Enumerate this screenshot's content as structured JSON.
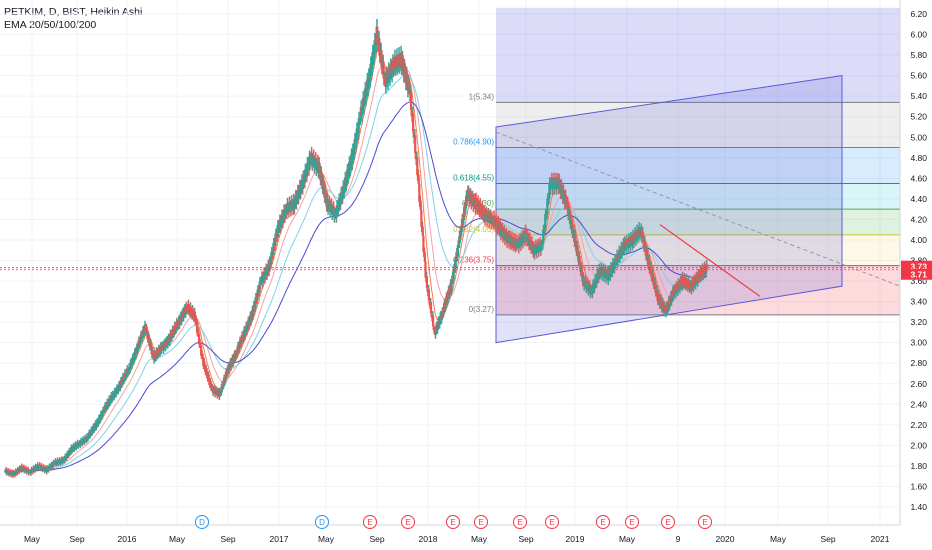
{
  "legend": {
    "title": "PETKIM, D, BIST, Heikin Ashi",
    "indicator": "EMA 20/50/100/200"
  },
  "chart_data": {
    "type": "candlestick",
    "symbol": "PETKIM",
    "interval": "D",
    "exchange": "BIST",
    "style": "Heikin Ashi",
    "y_axis_ticks": [
      1.4,
      1.6,
      1.8,
      2.0,
      2.2,
      2.4,
      2.6,
      2.8,
      3.0,
      3.2,
      3.4,
      3.6,
      3.8,
      4.0,
      4.2,
      4.4,
      4.6,
      4.8,
      5.0,
      5.2,
      5.4,
      5.6,
      5.8,
      6.0,
      6.2
    ],
    "ylim": [
      1.36,
      6.26
    ],
    "x_axis_ticks": [
      "May",
      "Sep",
      "2016",
      "May",
      "Sep",
      "2017",
      "May",
      "Sep",
      "2018",
      "May",
      "Sep",
      "2019",
      "May",
      "9",
      "2020",
      "May",
      "Sep",
      "2021"
    ],
    "price_labels": [
      {
        "value": "3.73",
        "color": "#f23645"
      },
      {
        "value": "3.71",
        "color": "#f23645"
      }
    ],
    "price_path": [
      [
        0,
        1.75
      ],
      [
        0.3,
        1.72
      ],
      [
        0.6,
        1.78
      ],
      [
        0.9,
        1.74
      ],
      [
        1.2,
        1.8
      ],
      [
        1.5,
        1.76
      ],
      [
        1.8,
        1.83
      ],
      [
        2.1,
        1.85
      ],
      [
        2.4,
        1.96
      ],
      [
        2.7,
        2.02
      ],
      [
        3.0,
        2.08
      ],
      [
        3.3,
        2.2
      ],
      [
        3.6,
        2.35
      ],
      [
        3.9,
        2.48
      ],
      [
        4.2,
        2.6
      ],
      [
        4.5,
        2.75
      ],
      [
        4.8,
        2.95
      ],
      [
        5.1,
        3.15
      ],
      [
        5.4,
        2.85
      ],
      [
        5.7,
        2.95
      ],
      [
        6.0,
        3.05
      ],
      [
        6.3,
        3.2
      ],
      [
        6.6,
        3.35
      ],
      [
        6.9,
        3.25
      ],
      [
        7.2,
        2.8
      ],
      [
        7.5,
        2.55
      ],
      [
        7.8,
        2.5
      ],
      [
        8.1,
        2.75
      ],
      [
        8.4,
        2.9
      ],
      [
        8.7,
        3.1
      ],
      [
        9.0,
        3.3
      ],
      [
        9.3,
        3.6
      ],
      [
        9.6,
        3.75
      ],
      [
        9.9,
        4.1
      ],
      [
        10.2,
        4.3
      ],
      [
        10.5,
        4.35
      ],
      [
        10.8,
        4.55
      ],
      [
        11.1,
        4.8
      ],
      [
        11.4,
        4.7
      ],
      [
        11.7,
        4.35
      ],
      [
        12.0,
        4.25
      ],
      [
        12.3,
        4.5
      ],
      [
        12.6,
        4.8
      ],
      [
        12.9,
        5.2
      ],
      [
        13.2,
        5.55
      ],
      [
        13.5,
        6.0
      ],
      [
        13.8,
        5.55
      ],
      [
        14.1,
        5.7
      ],
      [
        14.4,
        5.75
      ],
      [
        14.7,
        5.45
      ],
      [
        15.0,
        4.6
      ],
      [
        15.3,
        3.6
      ],
      [
        15.6,
        3.1
      ],
      [
        15.9,
        3.3
      ],
      [
        16.2,
        3.55
      ],
      [
        16.5,
        4.0
      ],
      [
        16.8,
        4.45
      ],
      [
        17.1,
        4.35
      ],
      [
        17.4,
        4.25
      ],
      [
        17.7,
        4.2
      ],
      [
        18.0,
        4.1
      ],
      [
        18.3,
        4.0
      ],
      [
        18.6,
        3.95
      ],
      [
        18.9,
        4.05
      ],
      [
        19.2,
        3.9
      ],
      [
        19.5,
        3.95
      ],
      [
        19.8,
        4.55
      ],
      [
        20.1,
        4.55
      ],
      [
        20.4,
        4.35
      ],
      [
        20.7,
        4.0
      ],
      [
        21.0,
        3.6
      ],
      [
        21.3,
        3.5
      ],
      [
        21.6,
        3.7
      ],
      [
        21.9,
        3.65
      ],
      [
        22.2,
        3.8
      ],
      [
        22.5,
        3.95
      ],
      [
        22.8,
        4.0
      ],
      [
        23.1,
        4.1
      ],
      [
        23.4,
        3.75
      ],
      [
        23.7,
        3.45
      ],
      [
        24.0,
        3.3
      ],
      [
        24.3,
        3.5
      ],
      [
        24.6,
        3.6
      ],
      [
        24.9,
        3.55
      ],
      [
        25.2,
        3.65
      ],
      [
        25.5,
        3.72
      ]
    ],
    "ema_series": [
      {
        "period": 20,
        "color": "#f57c4d"
      },
      {
        "period": 50,
        "color": "#f4a3a3"
      },
      {
        "period": 100,
        "color": "#7fd3e6"
      },
      {
        "period": 200,
        "color": "#4b4acf"
      }
    ],
    "fibonacci_levels": [
      {
        "label": "0(3.27)",
        "value": 3.27,
        "text_color": "#787b86",
        "fill": "#f23645"
      },
      {
        "label": "0.236(3.75)",
        "value": 3.75,
        "text_color": "#f23645",
        "fill": "#f7d774"
      },
      {
        "label": "0.382(4.05)",
        "value": 4.05,
        "text_color": "#c3c332",
        "fill": "#4caf50"
      },
      {
        "label": "0.5(4.30)",
        "value": 4.3,
        "text_color": "#4caf50",
        "fill": "#26c6da"
      },
      {
        "label": "0.618(4.55)",
        "value": 4.55,
        "text_color": "#089981",
        "fill": "#2196f3"
      },
      {
        "label": "0.786(4.90)",
        "value": 4.9,
        "text_color": "#2196f3",
        "fill": "#9e9e9e"
      },
      {
        "label": "1(5.34)",
        "value": 5.34,
        "text_color": "#787b86",
        "fill": "#3f3fd8"
      },
      {
        "label": "",
        "value": 6.26,
        "text_color": "#787b86",
        "fill": ""
      }
    ],
    "event_markers": [
      {
        "letter": "D",
        "color": "#2196f3"
      },
      {
        "letter": "D",
        "color": "#2196f3"
      },
      {
        "letter": "E",
        "color": "#f23645"
      },
      {
        "letter": "E",
        "color": "#f23645"
      },
      {
        "letter": "E",
        "color": "#f23645"
      },
      {
        "letter": "E",
        "color": "#f23645"
      },
      {
        "letter": "E",
        "color": "#f23645"
      },
      {
        "letter": "E",
        "color": "#f23645"
      },
      {
        "letter": "E",
        "color": "#f23645"
      },
      {
        "letter": "E",
        "color": "#f23645"
      },
      {
        "letter": "E",
        "color": "#f23645"
      },
      {
        "letter": "E",
        "color": "#f23645"
      }
    ],
    "channel": {
      "upper": [
        [
          3.9,
          5.1
        ],
        [
          3.0,
          5.6
        ]
      ],
      "lower": [
        [
          3.9,
          3.0
        ],
        [
          3.0,
          3.55
        ]
      ]
    },
    "trendline_dashed": [
      [
        5.05
      ],
      [
        3.55
      ]
    ],
    "trendline_red": [
      [
        4.15
      ],
      [
        3.45
      ]
    ],
    "grid": true,
    "colors": {
      "up": "#26a69a",
      "down": "#ef5350",
      "axis_text": "#131722"
    }
  }
}
